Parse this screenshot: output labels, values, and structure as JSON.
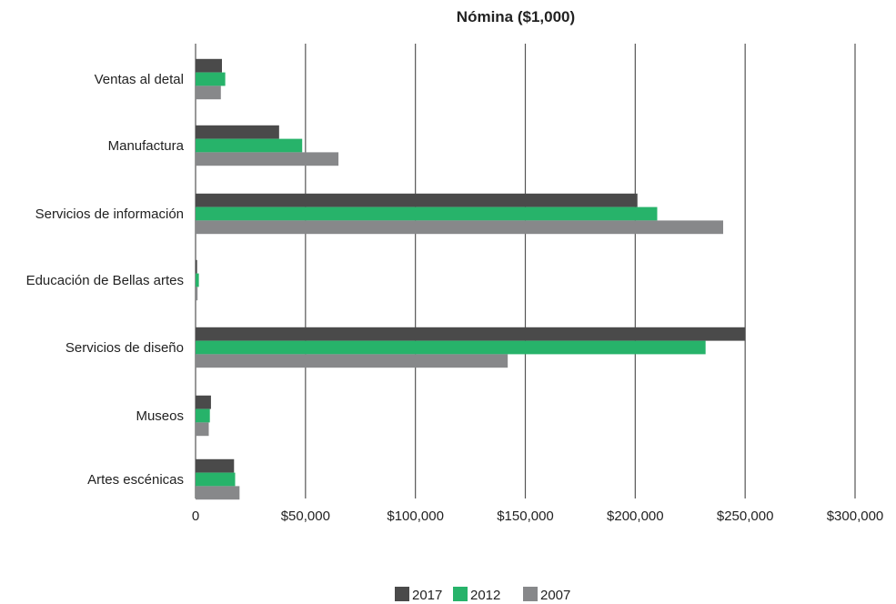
{
  "chart_data": {
    "type": "bar",
    "orientation": "horizontal",
    "title": "Nómina ($1,000)",
    "categories": [
      "Ventas al detal",
      "Manufactura",
      "Servicios de información",
      "Educación de Bellas artes",
      "Servicios de diseño",
      "Museos",
      "Artes escénicas"
    ],
    "series": [
      {
        "name": "2017",
        "color": "#4a4a4a",
        "values": [
          12000,
          38000,
          201000,
          700,
          250000,
          7000,
          17500
        ]
      },
      {
        "name": "2012",
        "color": "#27b36a",
        "values": [
          13500,
          48500,
          210000,
          1500,
          232000,
          6500,
          18000
        ]
      },
      {
        "name": "2007",
        "color": "#87888a",
        "values": [
          11500,
          65000,
          240000,
          900,
          142000,
          6000,
          20000
        ]
      }
    ],
    "x_ticks": [
      0,
      50000,
      100000,
      150000,
      200000,
      250000,
      300000
    ],
    "x_tick_labels": [
      "0",
      "$50,000",
      "$100,000",
      "$150,000",
      "$200,000",
      "$250,000",
      "$300,000"
    ],
    "xlim": [
      0,
      300000
    ],
    "grid": true,
    "legend": {
      "placement": "bottom-center"
    }
  }
}
